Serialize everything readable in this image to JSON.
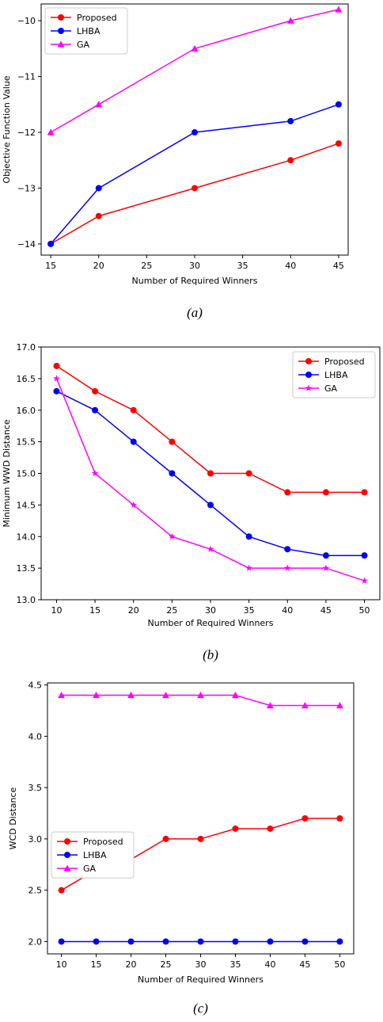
{
  "colors": {
    "Proposed": "#ff0000",
    "LHBA": "#0000ff",
    "GA": "#ff00ff"
  },
  "chart_data": [
    {
      "type": "line",
      "caption": "(a)",
      "xlabel": "Number of Required Winners",
      "ylabel": "Objective Function Value",
      "x": [
        15,
        20,
        30,
        40,
        45
      ],
      "xlim": [
        14,
        46
      ],
      "ylim": [
        -14.2,
        -9.7
      ],
      "xticks": [
        15,
        20,
        25,
        30,
        35,
        40,
        45
      ],
      "yticks": [
        -14,
        -13,
        -12,
        -11,
        -10
      ],
      "ytick_labels": [
        "−14",
        "−13",
        "−12",
        "−11",
        "−10"
      ],
      "grid": false,
      "legend_position": "top-left",
      "series": [
        {
          "name": "Proposed",
          "marker": "circle",
          "values": [
            -14,
            -13.5,
            -13,
            -12.5,
            -12.2
          ]
        },
        {
          "name": "LHBA",
          "marker": "circle",
          "values": [
            -14,
            -13,
            -12,
            -11.8,
            -11.5
          ]
        },
        {
          "name": "GA",
          "marker": "triangle",
          "values": [
            -12,
            -11.5,
            -10.5,
            -10,
            -9.8
          ]
        }
      ]
    },
    {
      "type": "line",
      "caption": "(b)",
      "xlabel": "Number of Required Winners",
      "ylabel": "Minimum WWD Distance",
      "x": [
        10,
        15,
        20,
        25,
        30,
        35,
        40,
        45,
        50
      ],
      "xlim": [
        8,
        52
      ],
      "ylim": [
        13,
        17
      ],
      "xticks": [
        10,
        15,
        20,
        25,
        30,
        35,
        40,
        45,
        50
      ],
      "yticks": [
        13.0,
        13.5,
        14.0,
        14.5,
        15.0,
        15.5,
        16.0,
        16.5,
        17.0
      ],
      "ytick_labels": [
        "13.0",
        "13.5",
        "14.0",
        "14.5",
        "15.0",
        "15.5",
        "16.0",
        "16.5",
        "17.0"
      ],
      "grid": false,
      "legend_position": "top-right",
      "series": [
        {
          "name": "Proposed",
          "marker": "circle",
          "values": [
            16.7,
            16.3,
            16.0,
            15.5,
            15.0,
            15.0,
            14.7,
            14.7,
            14.7
          ]
        },
        {
          "name": "LHBA",
          "marker": "circle",
          "values": [
            16.3,
            16.0,
            15.5,
            15.0,
            14.5,
            14.0,
            13.8,
            13.7,
            13.7
          ]
        },
        {
          "name": "GA",
          "marker": "star",
          "values": [
            16.5,
            15.0,
            14.5,
            14.0,
            13.8,
            13.5,
            13.5,
            13.5,
            13.3
          ]
        }
      ]
    },
    {
      "type": "line",
      "caption": "(c)",
      "xlabel": "Number of Required Winners",
      "ylabel": "WCD Distance",
      "x": [
        10,
        15,
        20,
        25,
        30,
        35,
        40,
        45,
        50
      ],
      "xlim": [
        8,
        52
      ],
      "ylim": [
        1.88,
        4.52
      ],
      "xticks": [
        10,
        15,
        20,
        25,
        30,
        35,
        40,
        45,
        50
      ],
      "yticks": [
        2.0,
        2.5,
        3.0,
        3.5,
        4.0,
        4.5
      ],
      "ytick_labels": [
        "2.0",
        "2.5",
        "3.0",
        "3.5",
        "4.0",
        "4.5"
      ],
      "grid": false,
      "legend_position": "center-left",
      "series": [
        {
          "name": "Proposed",
          "marker": "circle",
          "values": [
            2.5,
            2.7,
            2.8,
            3.0,
            3.0,
            3.1,
            3.1,
            3.2,
            3.2
          ]
        },
        {
          "name": "LHBA",
          "marker": "circle",
          "values": [
            2.0,
            2.0,
            2.0,
            2.0,
            2.0,
            2.0,
            2.0,
            2.0,
            2.0
          ]
        },
        {
          "name": "GA",
          "marker": "triangle",
          "values": [
            4.4,
            4.4,
            4.4,
            4.4,
            4.4,
            4.4,
            4.3,
            4.3,
            4.3
          ]
        }
      ]
    }
  ]
}
